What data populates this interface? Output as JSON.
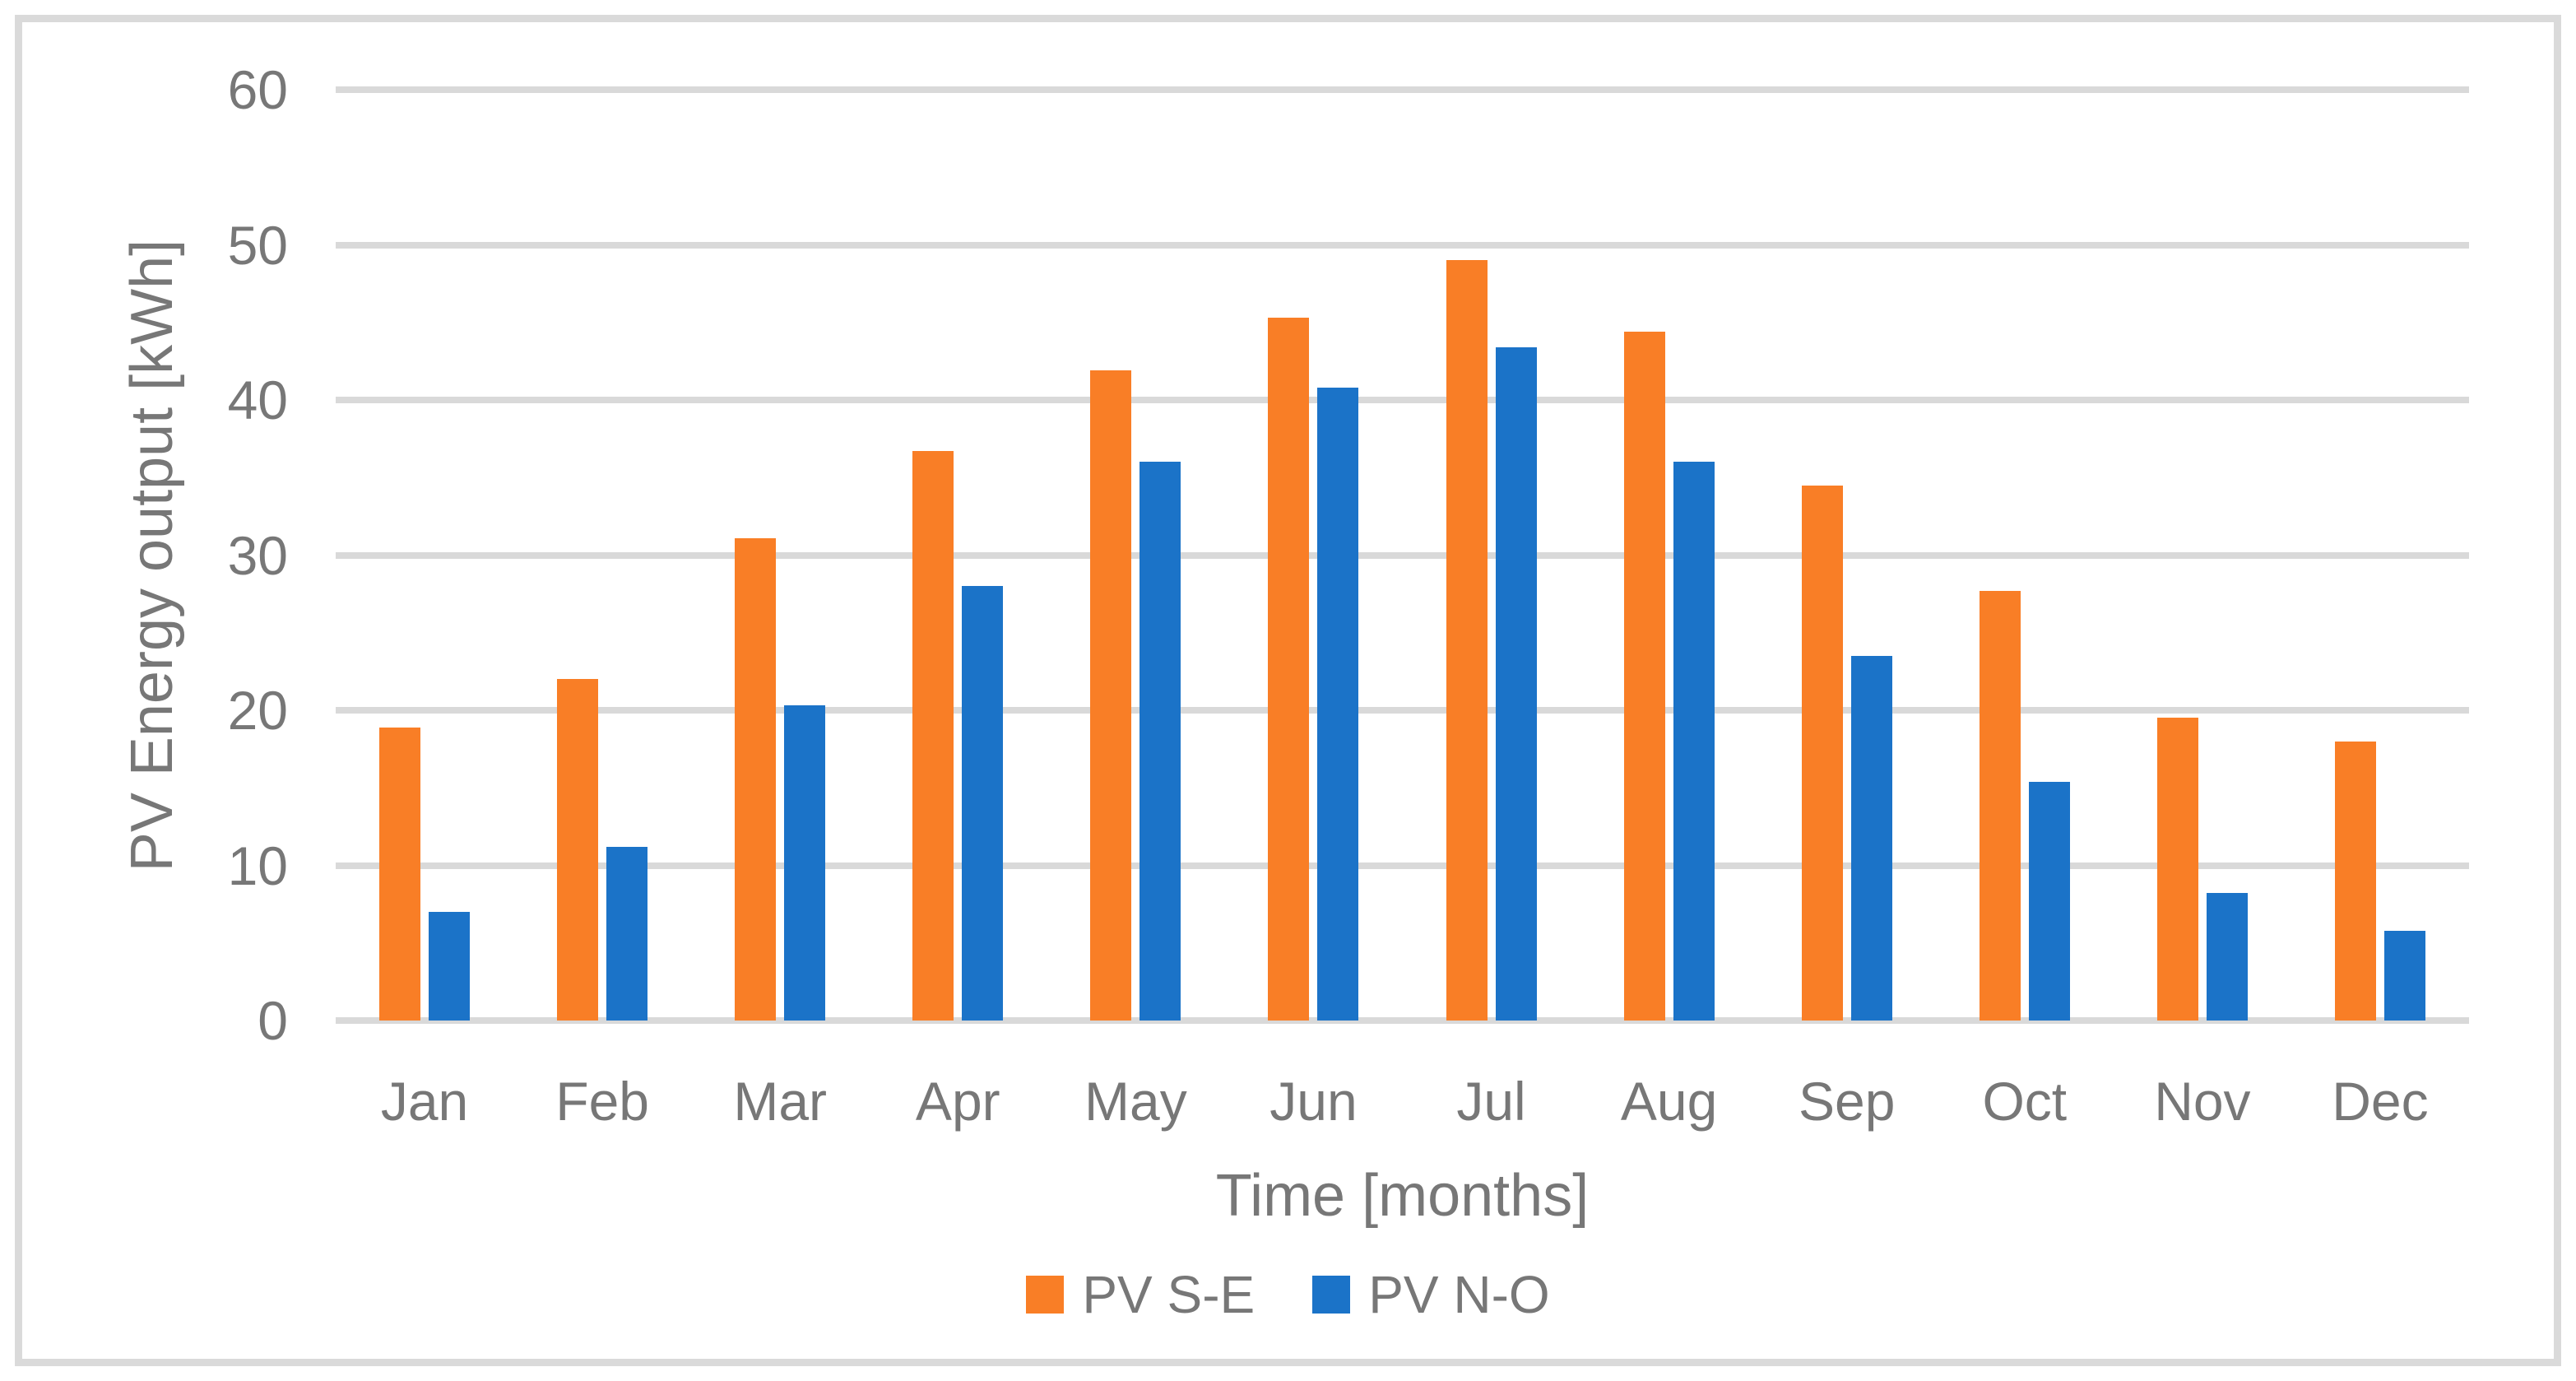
{
  "figure": {
    "background_color": "#ffffff",
    "border_color": "#dadada"
  },
  "chart_data": {
    "type": "bar",
    "title": "",
    "categories": [
      "Jan",
      "Feb",
      "Mar",
      "Apr",
      "May",
      "Jun",
      "Jul",
      "Aug",
      "Sep",
      "Oct",
      "Nov",
      "Dec"
    ],
    "series": [
      {
        "name": "PV S-E",
        "color": "#f97e26",
        "values": [
          18.9,
          22.0,
          31.1,
          36.7,
          41.9,
          45.3,
          49.0,
          44.4,
          34.5,
          27.7,
          19.5,
          18.0
        ]
      },
      {
        "name": "PV N-O",
        "color": "#1b73c8",
        "values": [
          7.0,
          11.2,
          20.3,
          28.0,
          36.0,
          40.8,
          43.4,
          36.0,
          23.5,
          15.4,
          8.2,
          5.8
        ]
      }
    ],
    "xlabel": "Time [months]",
    "ylabel": "PV Energy output [kWh]",
    "ylim": [
      0,
      60
    ],
    "yticks": [
      0,
      10,
      20,
      30,
      40,
      50,
      60
    ],
    "grid": true,
    "gridline_color": "#d9d9d9",
    "axis_text_color": "#777777",
    "legend_position": "bottom"
  }
}
